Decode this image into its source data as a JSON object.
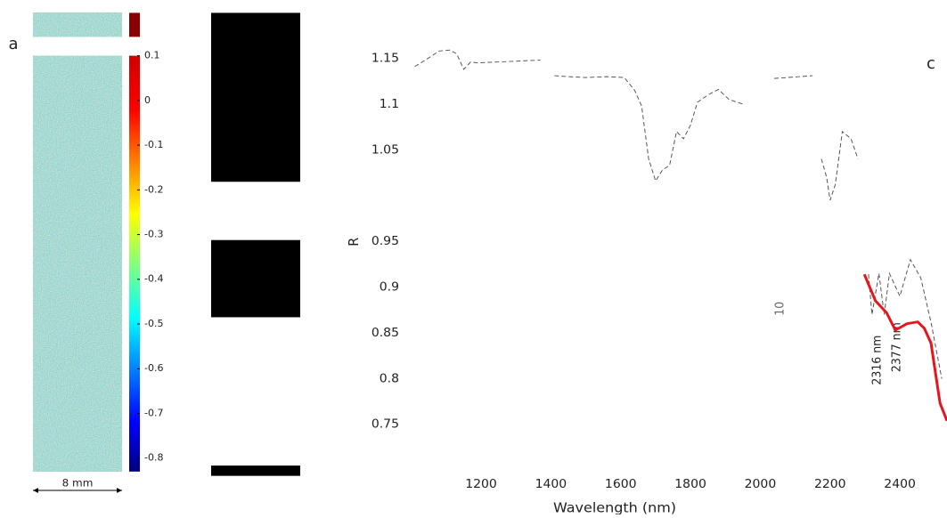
{
  "panel_labels": [
    "a",
    "c"
  ],
  "scale_bar": "8 mm",
  "colorbar": {
    "lim": [
      -0.83,
      0.1
    ],
    "ticks": [
      0.1,
      0,
      -0.1,
      -0.2,
      -0.3,
      -0.4,
      -0.5,
      -0.6,
      -0.7,
      -0.8
    ]
  },
  "chart_data": {
    "type": "line",
    "xlabel": "Wavelength (nm)",
    "ylabel": "R",
    "xlim": [
      1000,
      2535
    ],
    "ylim": [
      0.72,
      1.17
    ],
    "xticks": [
      1200,
      1400,
      1600,
      1800,
      2000,
      2200,
      2400
    ],
    "yticks": [
      0.75,
      0.8,
      0.85,
      0.9,
      0.95,
      1.05,
      1.1,
      1.15
    ],
    "annotations": [
      "2316 nm",
      "2377 nm",
      "10"
    ],
    "series": [
      {
        "color": "#555555",
        "dashed": true,
        "x": [
          1010,
          1040,
          1080,
          1110,
          1130,
          1150,
          1170,
          1190,
          1370,
          1390,
          1410,
          1450,
          1500,
          1560,
          1610,
          1640,
          1660,
          1680,
          1700,
          1720,
          1740,
          1760,
          1780,
          1800,
          1820,
          1850,
          1880,
          1910,
          1950,
          1970,
          2040,
          2150,
          2170,
          2175,
          2190,
          2200,
          2215,
          2235,
          2260,
          2280,
          2300,
          2310,
          2320,
          2340,
          2355,
          2370,
          2400,
          2430,
          2460,
          2490,
          2520
        ],
        "values": [
          1.141,
          1.148,
          1.158,
          1.159,
          1.155,
          1.138,
          1.146,
          1.145,
          1.148,
          null,
          1.131,
          1.13,
          1.129,
          1.13,
          1.129,
          1.115,
          1.098,
          1.04,
          1.016,
          1.028,
          1.033,
          1.07,
          1.062,
          1.077,
          1.102,
          1.11,
          1.116,
          1.105,
          1.1,
          null,
          1.128,
          1.131,
          null,
          1.04,
          1.02,
          0.995,
          1.012,
          1.07,
          1.062,
          1.04,
          null,
          0.914,
          0.87,
          0.915,
          0.87,
          0.915,
          0.89,
          0.93,
          0.91,
          0.86,
          0.8
        ]
      },
      {
        "color": "#e8141b",
        "dashed": false,
        "x": [
          2298,
          2330,
          2362,
          2387,
          2420,
          2451,
          2470,
          2489,
          2515,
          2535
        ],
        "values": [
          0.914,
          0.885,
          0.872,
          0.853,
          0.86,
          0.862,
          0.855,
          0.839,
          0.773,
          0.754
        ]
      }
    ]
  }
}
